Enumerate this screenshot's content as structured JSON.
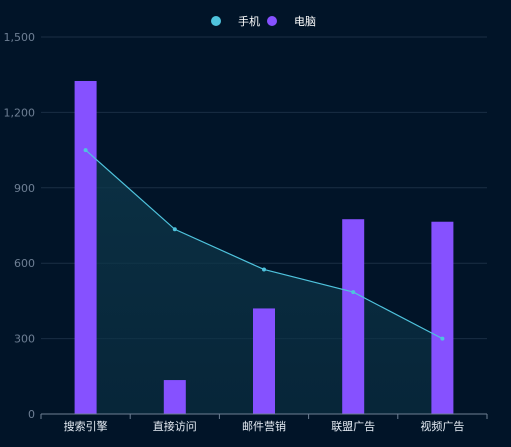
{
  "chart_data": {
    "type": "bar+line",
    "categories": [
      "搜索引擎",
      "直接访问",
      "邮件营销",
      "联盟广告",
      "视频广告"
    ],
    "series": [
      {
        "name": "手机",
        "type": "line",
        "values": [
          1050,
          735,
          575,
          485,
          300
        ],
        "color": "#4fc3dd"
      },
      {
        "name": "电脑",
        "type": "bar",
        "values": [
          1325,
          135,
          420,
          775,
          765
        ],
        "color": "#8651ff"
      }
    ],
    "ylim": [
      0,
      1500
    ],
    "yticks": [
      0,
      300,
      600,
      900,
      1200,
      1500
    ],
    "ytick_labels": [
      "0",
      "300",
      "600",
      "900",
      "1,200",
      "1,500"
    ],
    "grid": true,
    "legend_position": "top-center",
    "background": "#011428"
  }
}
